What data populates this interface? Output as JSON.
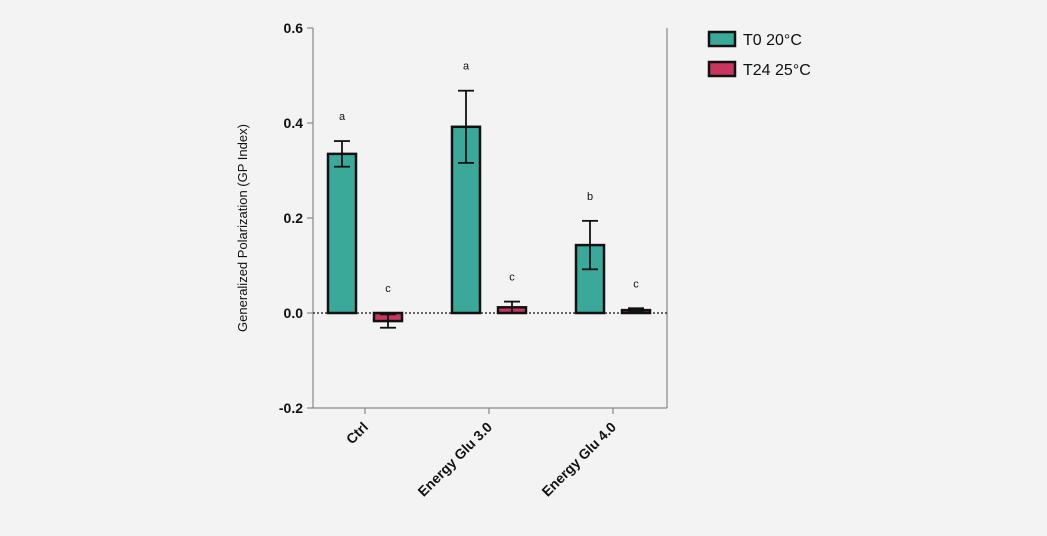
{
  "chart_data": {
    "type": "bar",
    "ylabel": "Generalized Polarization (GP Index)",
    "ylim": [
      -0.2,
      0.6
    ],
    "yticks": [
      -0.2,
      0.0,
      0.2,
      0.4,
      0.6
    ],
    "ytick_labels": [
      "-0.2",
      "0.0",
      "0.2",
      "0.4",
      "0.6"
    ],
    "categories": [
      "Ctrl",
      "Energy Glu 3.0",
      "Energy Glu 4.0"
    ],
    "zero_line": "dotted",
    "legend_position": "top-right",
    "series": [
      {
        "name": "T0 20°C",
        "color": "#3aa99a",
        "values": [
          0.335,
          0.392,
          0.143
        ],
        "errors": [
          0.027,
          0.076,
          0.051
        ],
        "labels": [
          "a",
          "a",
          "b"
        ]
      },
      {
        "name": "T24 25°C",
        "color": "#c8365f",
        "values": [
          -0.017,
          0.012,
          0.006
        ],
        "errors": [
          0.014,
          0.012,
          0.004
        ],
        "labels": [
          "c",
          "c",
          "c"
        ]
      }
    ]
  }
}
